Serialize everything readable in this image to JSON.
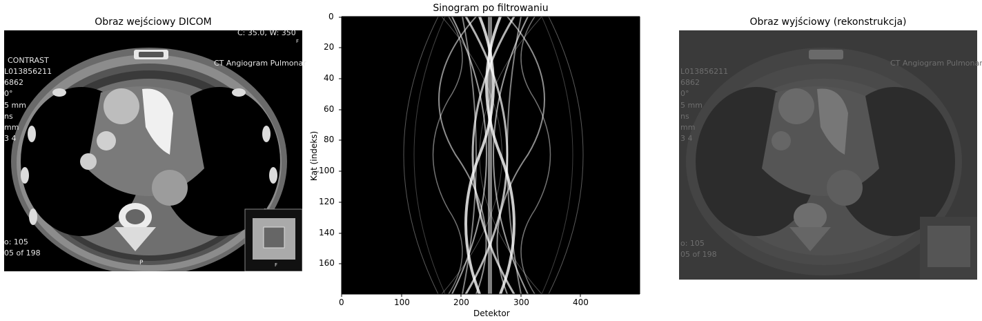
{
  "panels": {
    "input": {
      "title": "Obraz wejściowy DICOM",
      "overlay": {
        "top_right": "C:   35.0, W:   350",
        "top_right_small": "F",
        "contrast": "CONTRAST",
        "id_line": "L013856211",
        "line_3": "6862",
        "line_4": "0°",
        "line_5": "5 mm",
        "line_6": "ns",
        "line_7": "mm",
        "line_8": "3 4",
        "series_title": "CT Angiogram Pulmonar",
        "bottom_1": "o: 105",
        "bottom_2": "05 of 198",
        "posterior_marker": "P",
        "scout_marker": "F"
      }
    },
    "sinogram": {
      "title": "Sinogram po filtrowaniu",
      "xlabel": "Detektor",
      "ylabel": "Kąt (indeks)",
      "x_ticks": [
        "0",
        "100",
        "200",
        "300",
        "400"
      ],
      "y_ticks": [
        "0",
        "20",
        "40",
        "60",
        "80",
        "100",
        "120",
        "140",
        "160"
      ]
    },
    "output": {
      "title": "Obraz wyjściowy (rekonstrukcja)",
      "overlay": {
        "id_line": "L013856211",
        "line_3": "6862",
        "line_4": "0°",
        "line_5": "5 mm",
        "line_6": "ns",
        "line_7": "mm",
        "line_8": "3 4",
        "series_title": "CT Angiogram Pulmonar",
        "bottom_1": "o: 105",
        "bottom_2": "05 of 198"
      }
    }
  },
  "colors": {
    "background": "#ffffff",
    "image_black": "#000000",
    "recon_gray": "#3c3c3c",
    "text": "#000000"
  }
}
